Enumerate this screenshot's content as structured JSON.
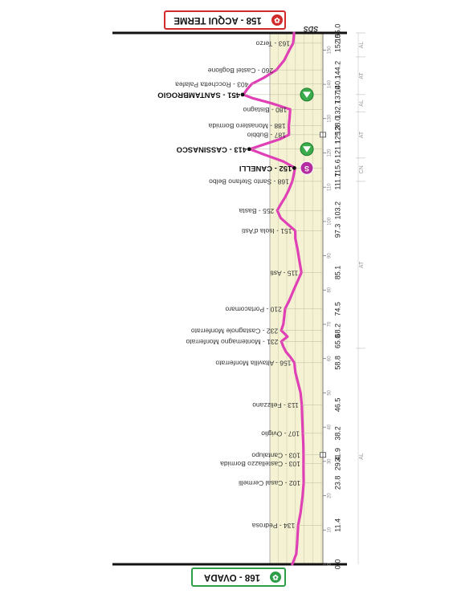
{
  "start": {
    "label": "168 - OVADA",
    "km": 0.0,
    "color": "#2e9e48"
  },
  "finish": {
    "label": "158 - ACQUI TERME",
    "km": 155.0,
    "color": "#d12a2a"
  },
  "brand": "SDS",
  "colors": {
    "profile": "#e040b5",
    "band": "#f4f2d2",
    "sprint": "#b42da0",
    "gpm": "#3aaa4a"
  },
  "chart_data": {
    "type": "line",
    "orientation": "vertical-distance",
    "xlim": [
      0,
      155
    ],
    "towns": [
      {
        "km": 0.0,
        "label": ""
      },
      {
        "km": 11.4,
        "label": "134 - Pedrosa"
      },
      {
        "km": 23.8,
        "label": "102 - Casal Cermelli"
      },
      {
        "km": 29.4,
        "label": "103 - Castellazzo Bormida"
      },
      {
        "km": 31.9,
        "label": "103 - Cantalupo"
      },
      {
        "km": 38.2,
        "label": "107 - Oviglio"
      },
      {
        "km": 46.5,
        "label": "113 - Felizzano"
      },
      {
        "km": 58.8,
        "label": "156 - Altavilla Monferrato"
      },
      {
        "km": 65.0,
        "label": "231 - Montemagno Monferrato"
      },
      {
        "km": 68.2,
        "label": "232 - Castagnole Monferrato"
      },
      {
        "km": 74.5,
        "label": "210 - Portacomaro"
      },
      {
        "km": 85.1,
        "label": "115 - Asti"
      },
      {
        "km": 97.3,
        "label": "151 - Isola d'Asti"
      },
      {
        "km": 103.2,
        "label": "255 - Basta"
      },
      {
        "km": 111.7,
        "label": "168 - Santo Stefano Belbo"
      },
      {
        "km": 115.6,
        "label": "152 - CANELLI",
        "major": true
      },
      {
        "km": 121.1,
        "label": "413 - CASSINASCO",
        "major": true
      },
      {
        "km": 125.3,
        "label": "187 - Bubbio"
      },
      {
        "km": 128.0,
        "label": "188 - Monastero Bormida"
      },
      {
        "km": 132.7,
        "label": "180 - Bistagno"
      },
      {
        "km": 137.0,
        "label": "451 - SANTAMBROGIO",
        "major": true
      },
      {
        "km": 140.1,
        "label": "403 - Rocchetta Palafea"
      },
      {
        "km": 144.2,
        "label": "260 - Castel Boglione"
      },
      {
        "km": 152.0,
        "label": "163 - Terzo"
      },
      {
        "km": 155.0,
        "label": ""
      }
    ],
    "km_labels": [
      "0.0",
      "11.4",
      "23.8",
      "29.4",
      "31.9",
      "38.2",
      "46.5",
      "58.8",
      "65.0",
      "68.2",
      "74.5",
      "85.1",
      "97.3",
      "103.2",
      "111.7",
      "115.6",
      "121.1",
      "125.3",
      "128.0",
      "132.7",
      "137.0",
      "140.1",
      "144.2",
      "152.0",
      "155.0"
    ],
    "ticks": [
      0,
      10,
      20,
      30,
      40,
      50,
      60,
      70,
      80,
      90,
      100,
      110,
      120,
      130,
      140,
      150
    ],
    "tick_labels": [
      "0",
      "10",
      "20",
      "30",
      "40",
      "50",
      "60",
      "70",
      "80",
      "90",
      "100",
      "110",
      "120",
      "130",
      "140",
      "150"
    ],
    "provinces": [
      {
        "label": "AL",
        "from": 0,
        "to": 63
      },
      {
        "label": "AT",
        "from": 63,
        "to": 111.7
      },
      {
        "label": "CN",
        "from": 111.7,
        "to": 118.5
      },
      {
        "label": "AT",
        "from": 118.5,
        "to": 132
      },
      {
        "label": "AL",
        "from": 132,
        "to": 137
      },
      {
        "label": "AT",
        "from": 137,
        "to": 148
      },
      {
        "label": "AL",
        "from": 148,
        "to": 155
      }
    ],
    "profile": [
      [
        0,
        168
      ],
      [
        3,
        145
      ],
      [
        6,
        140
      ],
      [
        11.4,
        134
      ],
      [
        15,
        120
      ],
      [
        20,
        108
      ],
      [
        23.8,
        102
      ],
      [
        27,
        103
      ],
      [
        29.4,
        103
      ],
      [
        31.9,
        103
      ],
      [
        35,
        104
      ],
      [
        38.2,
        107
      ],
      [
        42,
        110
      ],
      [
        46.5,
        113
      ],
      [
        50,
        120
      ],
      [
        54,
        140
      ],
      [
        56,
        150
      ],
      [
        58.8,
        156
      ],
      [
        60.5,
        180
      ],
      [
        62,
        205
      ],
      [
        63.5,
        220
      ],
      [
        65.0,
        231
      ],
      [
        66.4,
        196
      ],
      [
        67.3,
        213
      ],
      [
        68.2,
        232
      ],
      [
        70,
        220
      ],
      [
        72,
        215
      ],
      [
        74.5,
        210
      ],
      [
        77,
        185
      ],
      [
        80,
        160
      ],
      [
        85.1,
        115
      ],
      [
        88,
        125
      ],
      [
        92,
        138
      ],
      [
        95,
        150
      ],
      [
        97.3,
        151
      ],
      [
        99,
        190
      ],
      [
        101,
        235
      ],
      [
        103.2,
        255
      ],
      [
        105,
        235
      ],
      [
        107,
        210
      ],
      [
        109,
        190
      ],
      [
        111.7,
        168
      ],
      [
        113.5,
        160
      ],
      [
        115.6,
        152
      ],
      [
        117.5,
        220
      ],
      [
        119.5,
        330
      ],
      [
        121.1,
        413
      ],
      [
        122.5,
        330
      ],
      [
        124,
        240
      ],
      [
        125.3,
        187
      ],
      [
        128.0,
        188
      ],
      [
        130,
        184
      ],
      [
        132.7,
        180
      ],
      [
        134.5,
        290
      ],
      [
        136,
        400
      ],
      [
        137.0,
        451
      ],
      [
        138.5,
        430
      ],
      [
        140.1,
        403
      ],
      [
        142,
        330
      ],
      [
        144.2,
        260
      ],
      [
        147,
        215
      ],
      [
        150,
        185
      ],
      [
        152.0,
        163
      ],
      [
        153.5,
        160
      ],
      [
        155.0,
        158
      ]
    ],
    "sprints": [
      {
        "km": 115.6,
        "label": "S"
      }
    ],
    "gpm": [
      {
        "km": 121.1
      },
      {
        "km": 137.0
      }
    ],
    "feeds": [
      31.9,
      125.3
    ]
  }
}
